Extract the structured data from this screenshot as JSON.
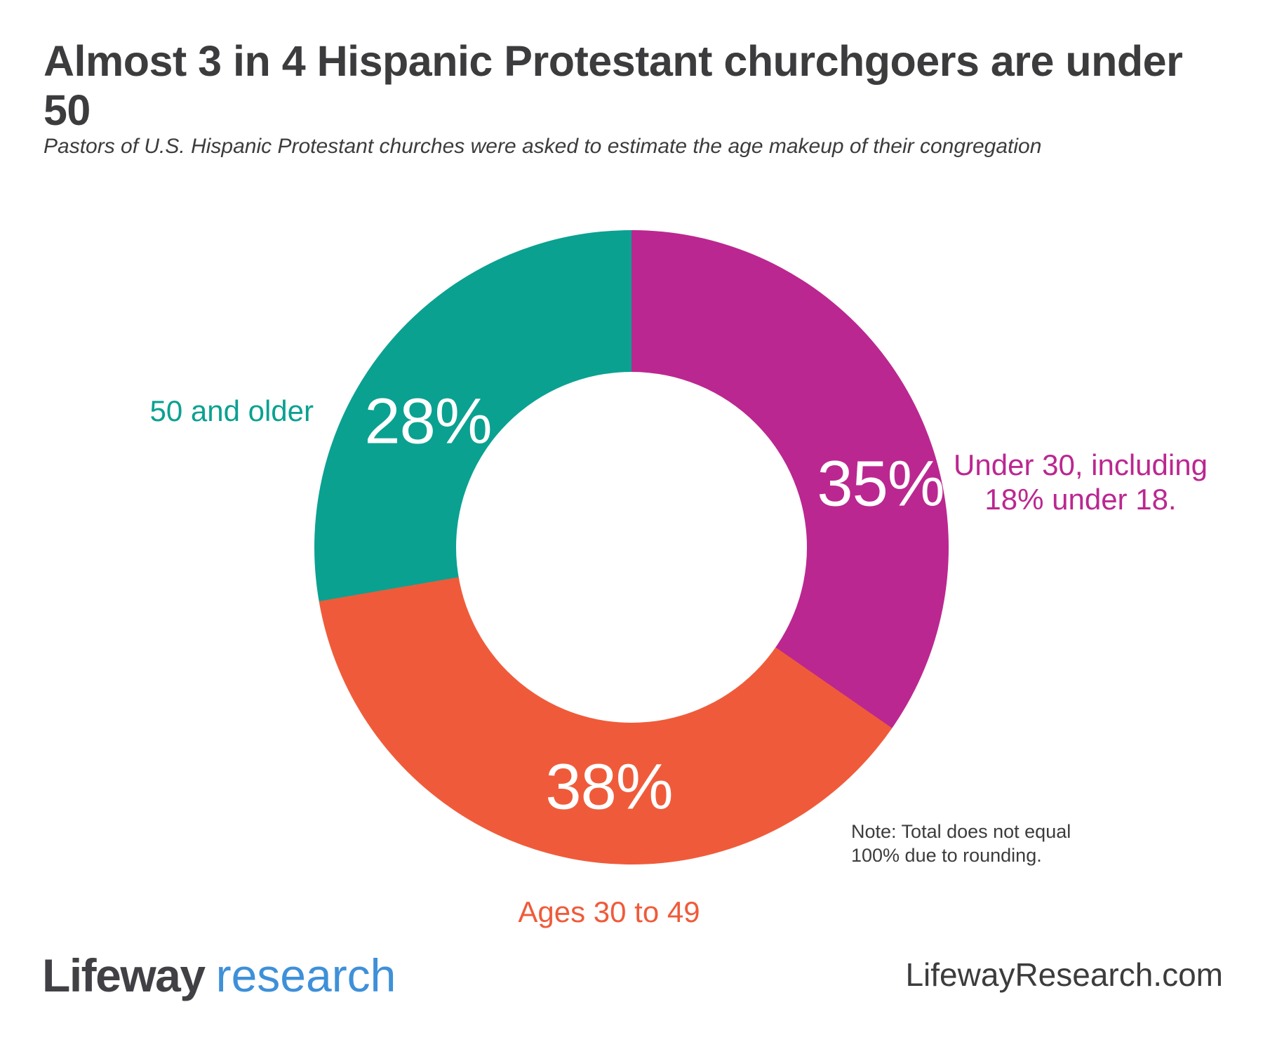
{
  "title": "Almost 3 in 4 Hispanic Protestant churchgoers are under 50",
  "subtitle": "Pastors of U.S. Hispanic Protestant churches were asked to estimate the age makeup of their congregation",
  "chart_data": {
    "type": "pie",
    "style": "donut",
    "start_angle_deg": 0,
    "direction": "clockwise",
    "values_sum": 101,
    "segments": [
      {
        "id": "under30",
        "label": "Under 30, including 18% under 18.",
        "label_lines": [
          "Under 30, including",
          "18% under 18."
        ],
        "value": 35,
        "value_label": "35%",
        "color": "#BB2790"
      },
      {
        "id": "ages30to49",
        "label": "Ages 30 to 49",
        "label_lines": [
          "Ages 30 to 49"
        ],
        "value": 38,
        "value_label": "38%",
        "color": "#EF5B3A"
      },
      {
        "id": "fiftyplus",
        "label": "50 and older",
        "label_lines": [
          "50 and older"
        ],
        "value": 28,
        "value_label": "28%",
        "color": "#0AA191"
      }
    ],
    "note": "Note: Total does not equal 100% due to rounding."
  },
  "note_lines": [
    "Note: Total does not equal",
    "100% due to rounding."
  ],
  "footer": {
    "logo_primary": "Lifeway",
    "logo_secondary": "research",
    "website": "LifewayResearch.com"
  },
  "colors": {
    "magenta": "#BB2790",
    "orange": "#EF5B3A",
    "teal": "#0AA191",
    "text_dark": "#3C3C3E",
    "logo_blue": "#3E90D9"
  }
}
